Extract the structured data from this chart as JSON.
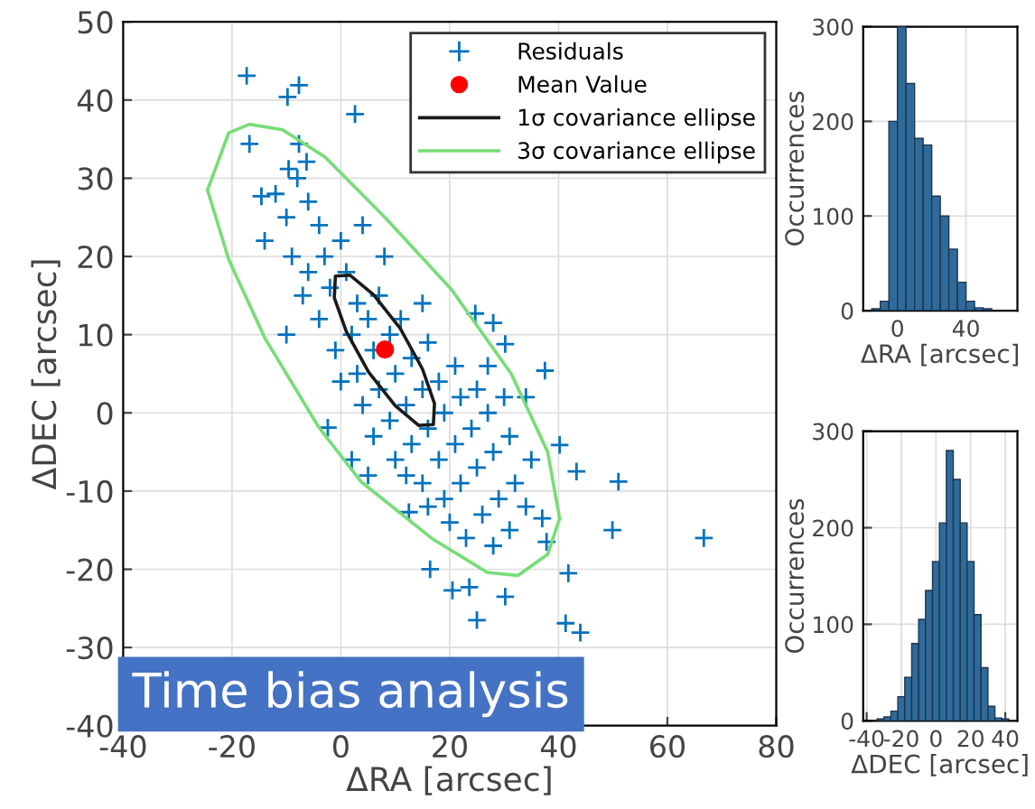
{
  "chart_data": [
    {
      "type": "scatter",
      "xlabel": "ΔRA [arcsec]",
      "ylabel": "ΔDEC [arcsec]",
      "xlim": [
        -40,
        80
      ],
      "ylim": [
        -40,
        50
      ],
      "xticks": [
        -40,
        -20,
        0,
        20,
        40,
        60,
        80
      ],
      "yticks": [
        -40,
        -30,
        -20,
        -10,
        0,
        10,
        20,
        30,
        40,
        50
      ],
      "grid": true,
      "legend": "top right",
      "annotations": [
        "Time bias analysis"
      ],
      "series": [
        {
          "name": "Residuals",
          "type": "scatter",
          "marker": "cross",
          "color": "#0072bd",
          "x": [
            -17.3,
            -9.8,
            -7.7,
            2.6,
            -16.8,
            -7.7,
            -2.4,
            66.7,
            51,
            49.9,
            37.5,
            40.2,
            43.3,
            41.8,
            44,
            41.3,
            25,
            20.5,
            23.6,
            30.2,
            16.4,
            37.8,
            37,
            24.7,
            28,
            30.2,
            12.5,
            -14.6,
            -9.6,
            -6.3,
            -12,
            -10,
            -8,
            -6,
            -4,
            -9,
            -6,
            -3,
            0,
            -7,
            -4,
            -2,
            1,
            3,
            -1,
            2,
            5,
            7,
            0,
            3,
            6,
            9,
            11,
            4,
            7,
            10,
            13,
            16,
            6,
            9,
            12,
            15,
            18,
            21,
            10,
            13,
            16,
            19,
            22,
            25,
            12,
            15,
            18,
            21,
            24,
            27,
            30,
            16,
            19,
            22,
            25,
            28,
            31,
            20,
            23,
            26,
            29,
            32,
            28,
            31,
            34,
            -14,
            -10,
            2,
            5,
            35,
            34,
            27,
            15,
            8,
            4
          ],
          "values": [
            43.1,
            40.4,
            41.9,
            38.2,
            34.4,
            34.4,
            -1.9,
            -16,
            -8.8,
            -15,
            5.4,
            -4.1,
            -7.5,
            -20.5,
            -28.1,
            -26.9,
            -26.5,
            -22.7,
            -22.3,
            -23.5,
            -20,
            -16.5,
            -13.5,
            12.7,
            11.5,
            8.8,
            -12.7,
            27.7,
            31.2,
            32.1,
            28,
            25,
            30,
            27,
            24,
            20,
            18,
            20,
            22,
            15,
            12,
            16,
            18,
            14,
            8,
            10,
            12,
            15,
            4,
            5,
            8,
            10,
            12,
            1,
            3,
            5,
            7,
            9,
            -3,
            -1,
            1,
            3,
            4,
            6,
            -6,
            -4,
            -2,
            0,
            2,
            3,
            -8,
            -9,
            -6,
            -4,
            -2,
            0,
            2,
            -12,
            -11,
            -9,
            -7,
            -5,
            -3,
            -14,
            -16,
            -13,
            -11,
            -9,
            -17,
            -15,
            -12,
            22,
            10,
            -6,
            -8,
            -6,
            2,
            6,
            14,
            20,
            24
          ]
        },
        {
          "name": "Mean Value",
          "type": "scatter",
          "marker": "circle",
          "color": "#ff0000",
          "x": [
            8.1
          ],
          "values": [
            8.1
          ]
        },
        {
          "name": "1σ covariance ellipse",
          "type": "line",
          "color": "#1a1a1a",
          "x": [
            -1.2,
            -1,
            1.7,
            6,
            10.9,
            15,
            17.2,
            17,
            14.3,
            10,
            5.1,
            1,
            -1.1
          ],
          "values": [
            14.8,
            17.5,
            17.6,
            15.1,
            10.8,
            5.6,
            1.2,
            -1.5,
            -1.6,
            0.9,
            5.2,
            10.4,
            14.5
          ]
        },
        {
          "name": "3σ covariance ellipse",
          "type": "line",
          "color": "#77dd77",
          "x": [
            -24.5,
            -20.6,
            -16.8,
            -10.7,
            -2.9,
            8.1,
            20.3,
            31.3,
            38,
            40.2
          ],
          "values": [
            28.5,
            35.8,
            36.9,
            36.2,
            32.7,
            25,
            15.8,
            5,
            -5,
            -13.5
          ]
        },
        {
          "type": "line",
          "color": "#77dd77",
          "x": [
            -24.5,
            -20.6,
            -14,
            -4,
            3.7,
            17,
            26.9,
            32.5,
            38,
            40.2
          ],
          "values": [
            28.5,
            19.6,
            9.6,
            -1.9,
            -8.8,
            -16.2,
            -20.4,
            -20.8,
            -18.1,
            -13.5
          ]
        }
      ]
    },
    {
      "type": "histogram",
      "xlabel": "ΔRA [arcsec]",
      "ylabel": "Occurrences",
      "color": "#2f6b9a",
      "xlim": [
        -20,
        70
      ],
      "ylim": [
        0,
        300
      ],
      "xticks": [
        0,
        40
      ],
      "yticks": [
        0,
        100,
        200,
        300
      ],
      "grid": true,
      "bins": [
        -15,
        -10,
        -5,
        0,
        5,
        10,
        15,
        20,
        25,
        30,
        35,
        40,
        45,
        50,
        55
      ],
      "values": [
        2,
        10,
        200,
        300,
        240,
        182,
        175,
        121,
        100,
        65,
        30,
        10,
        3,
        2
      ]
    },
    {
      "type": "histogram",
      "xlabel": "ΔDEC [arcsec]",
      "ylabel": "Occurrences",
      "color": "#2f6b9a",
      "xlim": [
        -42,
        47
      ],
      "ylim": [
        0,
        300
      ],
      "xticks": [
        -40,
        -20,
        0,
        20,
        40
      ],
      "yticks": [
        0,
        100,
        200,
        300
      ],
      "grid": true,
      "bins": [
        -34,
        -30,
        -26,
        -22,
        -18,
        -14,
        -10,
        -6,
        -2,
        2,
        6,
        10,
        14,
        18,
        22,
        26,
        30,
        34,
        38,
        42
      ],
      "values": [
        2,
        4,
        10,
        25,
        45,
        80,
        105,
        135,
        165,
        205,
        280,
        250,
        205,
        165,
        110,
        55,
        15,
        3,
        2
      ]
    }
  ]
}
